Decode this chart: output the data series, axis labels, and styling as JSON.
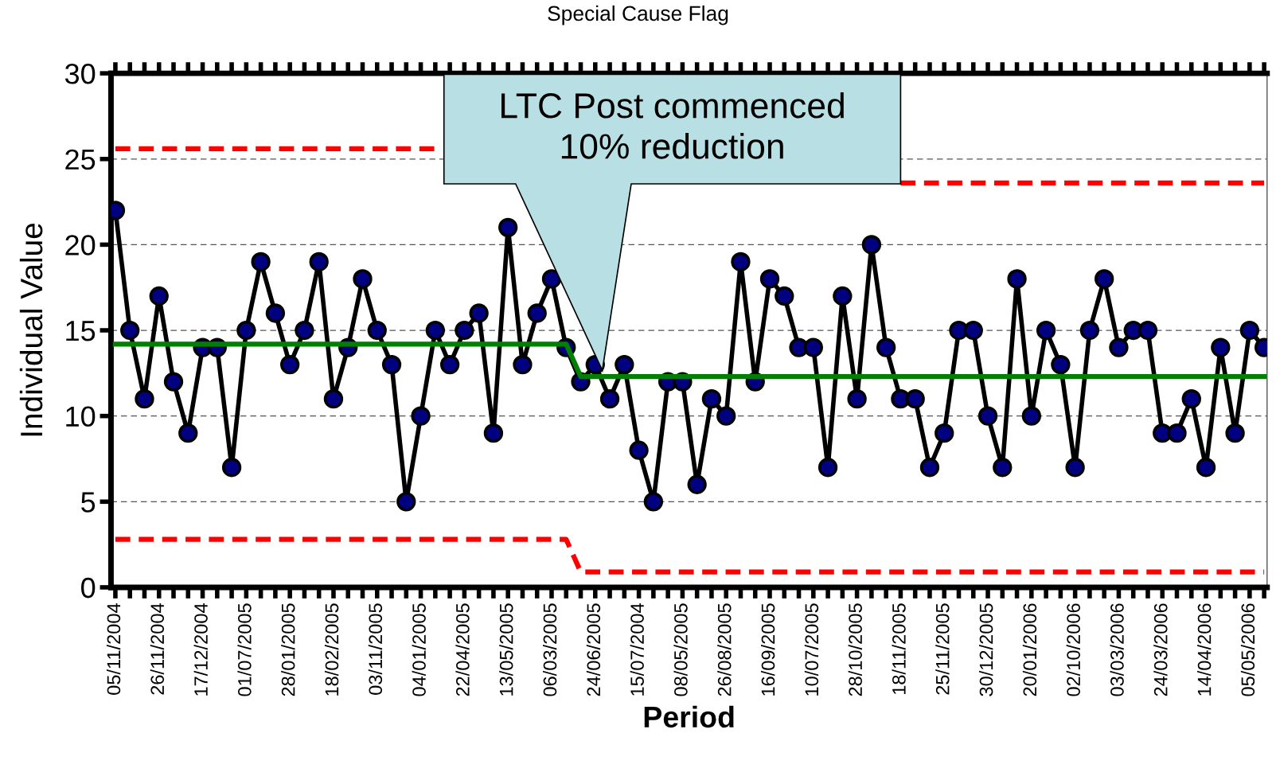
{
  "chart_data": {
    "type": "line",
    "title": "Special Cause Flag",
    "xlabel": "Period",
    "ylabel": "Individual Value",
    "categories": [
      "05/11/2004",
      null,
      null,
      "26/11/2004",
      null,
      null,
      "17/12/2004",
      null,
      null,
      "01/07/2005",
      null,
      null,
      "28/01/2005",
      null,
      null,
      "18/02/2005",
      null,
      null,
      "03/11/2005",
      null,
      null,
      "04/01/2005",
      null,
      null,
      "22/04/2005",
      null,
      null,
      "13/05/2005",
      null,
      null,
      "06/03/2005",
      null,
      null,
      "24/06/2005",
      null,
      null,
      "15/07/2004",
      null,
      null,
      "08/05/2005",
      null,
      null,
      "26/08/2005",
      null,
      null,
      "16/09/2005",
      null,
      null,
      "10/07/2005",
      null,
      null,
      "28/10/2005",
      null,
      null,
      "18/11/2005",
      null,
      null,
      "25/11/2005",
      null,
      null,
      "30/12/2005",
      null,
      null,
      "20/01/2006",
      null,
      null,
      "02/10/2006",
      null,
      null,
      "03/03/2006",
      null,
      null,
      "24/03/2006",
      null,
      null,
      "14/04/2006",
      null,
      null,
      "05/05/2006",
      null
    ],
    "series": [
      {
        "color": "#ff0000",
        "line_style": "dashed",
        "marker": "none",
        "values": [
          25.6,
          25.6,
          25.6,
          25.6,
          25.6,
          25.6,
          25.6,
          25.6,
          25.6,
          25.6,
          25.6,
          25.6,
          25.6,
          25.6,
          25.6,
          25.6,
          25.6,
          25.6,
          25.6,
          25.6,
          25.6,
          25.6,
          25.6,
          null,
          null,
          null,
          null,
          null,
          null,
          null,
          null,
          null,
          null,
          null,
          null,
          null,
          null,
          null,
          null,
          null,
          null,
          null,
          null,
          null,
          null,
          null,
          null,
          null,
          null,
          null,
          null,
          null,
          null,
          null,
          23.6,
          23.6,
          23.6,
          23.6,
          23.6,
          23.6,
          23.6,
          23.6,
          23.6,
          23.6,
          23.6,
          23.6,
          23.6,
          23.6,
          23.6,
          23.6,
          23.6,
          23.6,
          23.6,
          23.6,
          23.6,
          23.6,
          23.6,
          23.6,
          23.6,
          23.6
        ]
      },
      {
        "color": "#ff0000",
        "line_style": "dashed",
        "marker": "none",
        "values": [
          2.8,
          2.8,
          2.8,
          2.8,
          2.8,
          2.8,
          2.8,
          2.8,
          2.8,
          2.8,
          2.8,
          2.8,
          2.8,
          2.8,
          2.8,
          2.8,
          2.8,
          2.8,
          2.8,
          2.8,
          2.8,
          2.8,
          2.8,
          2.8,
          2.8,
          2.8,
          2.8,
          2.8,
          2.8,
          2.8,
          2.8,
          2.8,
          0.9,
          0.9,
          0.9,
          0.9,
          0.9,
          0.9,
          0.9,
          0.9,
          0.9,
          0.9,
          0.9,
          0.9,
          0.9,
          0.9,
          0.9,
          0.9,
          0.9,
          0.9,
          0.9,
          0.9,
          0.9,
          0.9,
          0.9,
          0.9,
          0.9,
          0.9,
          0.9,
          0.9,
          0.9,
          0.9,
          0.9,
          0.9,
          0.9,
          0.9,
          0.9,
          0.9,
          0.9,
          0.9,
          0.9,
          0.9,
          0.9,
          0.9,
          0.9,
          0.9,
          0.9,
          0.9,
          0.9,
          0.9
        ]
      },
      {
        "color": "#000080",
        "line_style": "solid",
        "marker": "circle",
        "values": [
          22,
          15,
          11,
          17,
          12,
          9,
          14,
          14,
          7,
          15,
          19,
          16,
          13,
          15,
          19,
          11,
          14,
          18,
          15,
          13,
          5,
          10,
          15,
          13,
          15,
          16,
          9,
          21,
          13,
          16,
          18,
          14,
          12,
          13,
          11,
          13,
          8,
          5,
          12,
          12,
          6,
          11,
          10,
          19,
          12,
          18,
          17,
          14,
          14,
          7,
          17,
          11,
          20,
          14,
          11,
          11,
          7,
          9,
          15,
          15,
          10,
          7,
          18,
          10,
          15,
          13,
          7,
          15,
          18,
          14,
          15,
          15,
          9,
          9,
          11,
          7,
          14,
          9,
          15,
          14
        ]
      },
      {
        "color": "#008000",
        "line_style": "solid",
        "marker": "none",
        "values": [
          14.2,
          14.2,
          14.2,
          14.2,
          14.2,
          14.2,
          14.2,
          14.2,
          14.2,
          14.2,
          14.2,
          14.2,
          14.2,
          14.2,
          14.2,
          14.2,
          14.2,
          14.2,
          14.2,
          14.2,
          14.2,
          14.2,
          14.2,
          14.2,
          14.2,
          14.2,
          14.2,
          14.2,
          14.2,
          14.2,
          14.2,
          14.2,
          12.3,
          12.3,
          12.3,
          12.3,
          12.3,
          12.3,
          12.3,
          12.3,
          12.3,
          12.3,
          12.3,
          12.3,
          12.3,
          12.3,
          12.3,
          12.3,
          12.3,
          12.3,
          12.3,
          12.3,
          12.3,
          12.3,
          12.3,
          12.3,
          12.3,
          12.3,
          12.3,
          12.3,
          12.3,
          12.3,
          12.3,
          12.3,
          12.3,
          12.3,
          12.3,
          12.3,
          12.3,
          12.3,
          12.3,
          12.3,
          12.3,
          12.3,
          12.3,
          12.3,
          12.3,
          12.3,
          12.3,
          12.3
        ]
      }
    ],
    "annotations": [
      "LTC Post commenced\n10% reduction"
    ],
    "ylim": [
      0,
      30
    ],
    "yticks": [
      0,
      5,
      10,
      15,
      20,
      25,
      30
    ],
    "grid": "y",
    "legend": false
  }
}
